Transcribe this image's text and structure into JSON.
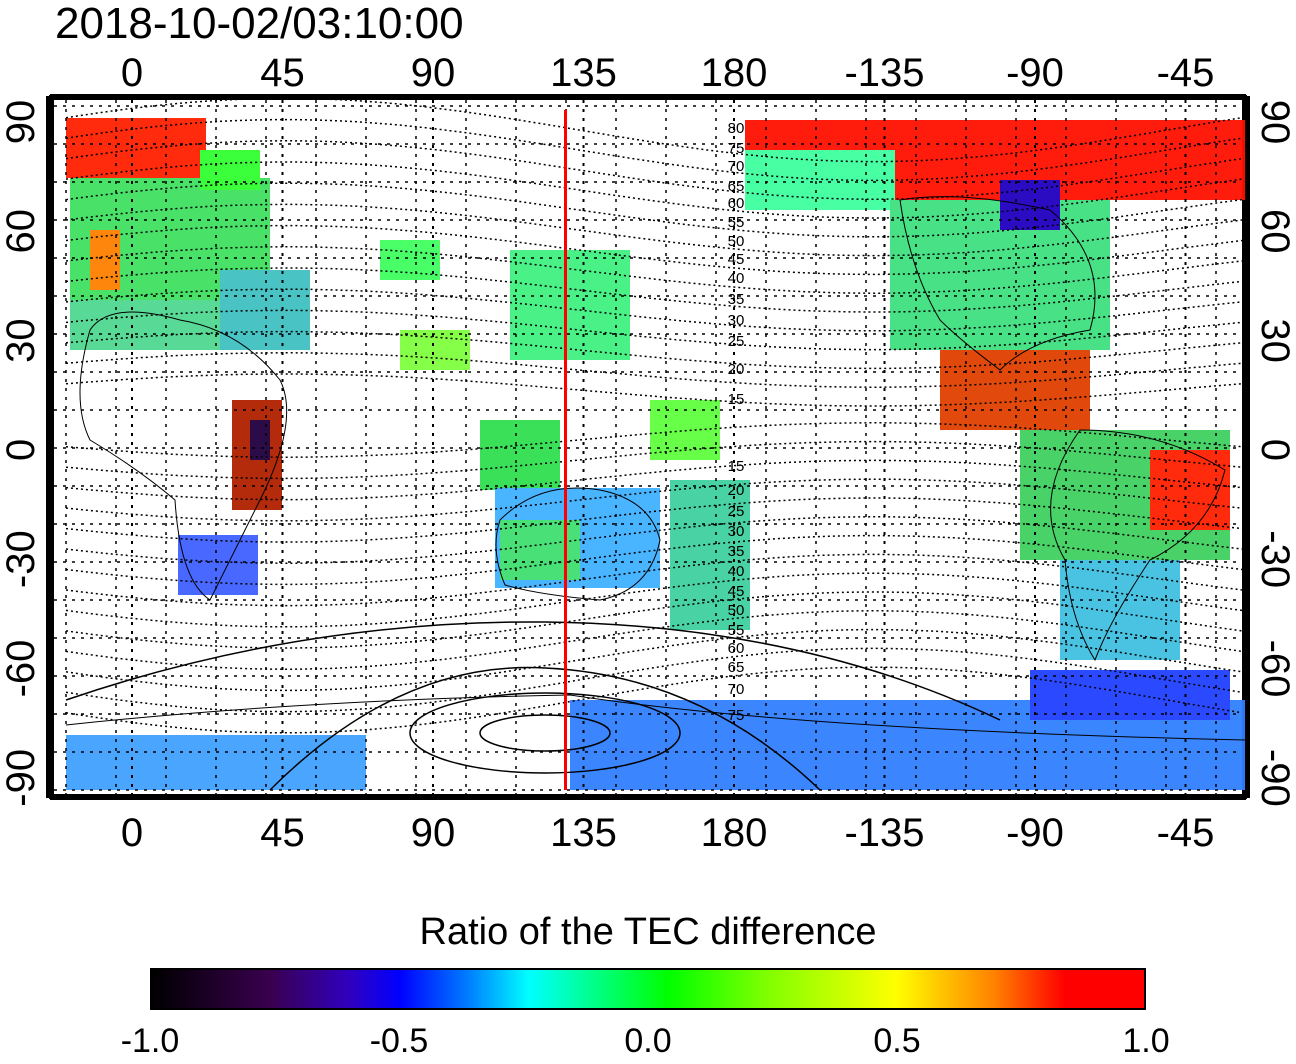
{
  "title": "2018-10-02/03:10:00",
  "map": {
    "lon_ticks": [
      "0",
      "45",
      "90",
      "135",
      "180",
      "-135",
      "-90",
      "-45"
    ],
    "lat_ticks": [
      "90",
      "60",
      "30",
      "0",
      "-30",
      "-60",
      "-90"
    ],
    "contour_labels_north": [
      "80",
      "75",
      "70",
      "65",
      "60",
      "55",
      "50",
      "45",
      "40",
      "35",
      "30",
      "25",
      "20",
      "15"
    ],
    "contour_labels_south": [
      "15",
      "20",
      "25",
      "30",
      "35",
      "40",
      "45",
      "50",
      "55",
      "60",
      "65",
      "70",
      "75"
    ],
    "terminator_longitude": 135,
    "colors": {
      "negative": "#0000ff",
      "zero": "#00ff00",
      "positive": "#ff0000",
      "terminator": "#ff0000"
    }
  },
  "colorbar": {
    "title": "Ratio of the TEC difference",
    "ticks": [
      "-1.0",
      "-0.5",
      "0.0",
      "0.5",
      "1.0"
    ],
    "range": [
      -1.0,
      1.0
    ]
  }
}
